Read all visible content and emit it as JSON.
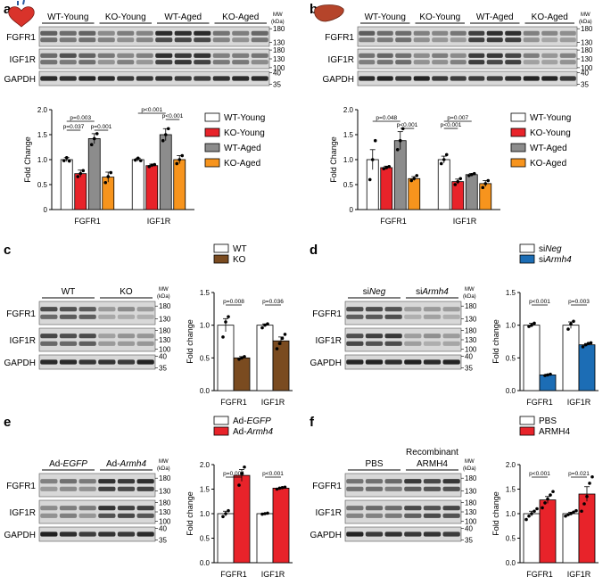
{
  "figure": {
    "panels": [
      {
        "id": "a",
        "organ": "heart",
        "blot": {
          "groups": [
            "WT-Young",
            "KO-Young",
            "WT-Aged",
            "KO-Aged"
          ],
          "rows": [
            "FGFR1",
            "IGF1R",
            "GAPDH"
          ],
          "mw_header": "MW (kDa)",
          "mw_marks": [
            "180",
            "130",
            "180",
            "130",
            "100",
            "40",
            "35"
          ],
          "lane_count": 12
        },
        "chart_data": {
          "type": "bar",
          "ylabel": "Fold Change",
          "ylim": [
            0,
            2.0
          ],
          "yticks": [
            "0",
            "0.5",
            "1.0",
            "1.5",
            "2.0"
          ],
          "categories": [
            "FGFR1",
            "IGF1R"
          ],
          "legend_placement": "right",
          "series": [
            {
              "name": "WT-Young",
              "color": "#ffffff",
              "values": [
                1.0,
                1.0
              ]
            },
            {
              "name": "KO-Young",
              "color": "#e8232a",
              "values": [
                0.72,
                0.88
              ]
            },
            {
              "name": "WT-Aged",
              "color": "#8c8c8c",
              "values": [
                1.42,
                1.5
              ]
            },
            {
              "name": "KO-Aged",
              "color": "#f7941d",
              "values": [
                0.65,
                1.0
              ]
            }
          ],
          "errors": [
            [
              0.04,
              0.03
            ],
            [
              0.07,
              0.03
            ],
            [
              0.1,
              0.12
            ],
            [
              0.1,
              0.08
            ]
          ],
          "points": [
            [
              [
                0.98,
                1.04,
                0.97
              ],
              [
                0.99,
                1.03,
                0.98
              ]
            ],
            [
              [
                0.66,
                0.72,
                0.78
              ],
              [
                0.86,
                0.89,
                0.9
              ]
            ],
            [
              [
                1.3,
                1.42,
                1.52
              ],
              [
                1.38,
                1.5,
                1.62
              ]
            ],
            [
              [
                0.54,
                0.66,
                0.74
              ],
              [
                0.92,
                1.0,
                1.08
              ]
            ]
          ],
          "annotations": [
            {
              "text": "p=0.037",
              "cat": 0,
              "from": 0,
              "to": 1
            },
            {
              "text": "p=0.003",
              "cat": 0,
              "from": 0,
              "to": 2
            },
            {
              "text": "p=0.001",
              "cat": 0,
              "from": 2,
              "to": 3
            },
            {
              "text": "p<0.001",
              "cat": 1,
              "from": 0,
              "to": 2
            },
            {
              "text": "p<0.001",
              "cat": 1,
              "from": 2,
              "to": 3
            }
          ]
        }
      },
      {
        "id": "b",
        "organ": "liver",
        "blot": {
          "groups": [
            "WT-Young",
            "KO-Young",
            "WT-Aged",
            "KO-Aged"
          ],
          "rows": [
            "FGFR1",
            "IGF1R",
            "GAPDH"
          ],
          "mw_header": "MW (kDa)",
          "mw_marks": [
            "180",
            "130",
            "180",
            "130",
            "100",
            "40",
            "35"
          ],
          "lane_count": 12
        },
        "chart_data": {
          "type": "bar",
          "ylabel": "Fold Change",
          "ylim": [
            0,
            2.0
          ],
          "yticks": [
            "0",
            "0.5",
            "1.0",
            "1.5",
            "2.0"
          ],
          "categories": [
            "FGFR1",
            "IGF1R"
          ],
          "legend_placement": "right",
          "series": [
            {
              "name": "WT-Young",
              "color": "#ffffff",
              "values": [
                1.0,
                1.0
              ]
            },
            {
              "name": "KO-Young",
              "color": "#e8232a",
              "values": [
                0.84,
                0.56
              ]
            },
            {
              "name": "WT-Aged",
              "color": "#8c8c8c",
              "values": [
                1.38,
                0.7
              ]
            },
            {
              "name": "KO-Aged",
              "color": "#f7941d",
              "values": [
                0.62,
                0.52
              ]
            }
          ],
          "errors": [
            [
              0.2,
              0.07
            ],
            [
              0.03,
              0.05
            ],
            [
              0.18,
              0.02
            ],
            [
              0.04,
              0.06
            ]
          ],
          "points": [
            [
              [
                0.6,
                1.0,
                1.38
              ],
              [
                0.92,
                1.0,
                1.1
              ]
            ],
            [
              [
                0.82,
                0.84,
                0.86
              ],
              [
                0.5,
                0.56,
                0.62
              ]
            ],
            [
              [
                1.2,
                1.38,
                1.62
              ],
              [
                0.68,
                0.7,
                0.72
              ]
            ],
            [
              [
                0.58,
                0.62,
                0.68
              ],
              [
                0.44,
                0.52,
                0.58
              ]
            ]
          ],
          "annotations": [
            {
              "text": "p=0.048",
              "cat": 0,
              "from": 0,
              "to": 2
            },
            {
              "text": "p<0.001",
              "cat": 0,
              "from": 2,
              "to": 3
            },
            {
              "text": "p=0.007",
              "cat": 1,
              "from": 0,
              "to": 2
            },
            {
              "text": "p<0.001",
              "cat": 1,
              "from": 0,
              "to": 1
            }
          ]
        }
      },
      {
        "id": "c",
        "blot": {
          "groups": [
            "WT",
            "KO"
          ],
          "rows": [
            "FGFR1",
            "IGF1R",
            "GAPDH"
          ],
          "mw_header": "MW (kDa)",
          "mw_marks": [
            "180",
            "130",
            "180",
            "130",
            "100",
            "40",
            "35"
          ],
          "lane_count": 6
        },
        "chart_data": {
          "type": "bar",
          "ylabel": "Fold change",
          "ylim": [
            0,
            1.5
          ],
          "yticks": [
            "0.0",
            "0.5",
            "1.0",
            "1.5"
          ],
          "categories": [
            "FGFR1",
            "IGF1R"
          ],
          "legend_placement": "top",
          "series": [
            {
              "name": "WT",
              "color": "#ffffff",
              "values": [
                1.0,
                1.0
              ]
            },
            {
              "name": "KO",
              "color": "#7a4b20",
              "values": [
                0.5,
                0.76
              ]
            }
          ],
          "errors": [
            [
              0.1,
              0.02
            ],
            [
              0.02,
              0.06
            ]
          ],
          "points": [
            [
              [
                0.82,
                1.05,
                1.13
              ],
              [
                0.96,
                1.0,
                1.02
              ]
            ],
            [
              [
                0.48,
                0.5,
                0.52
              ],
              [
                0.64,
                0.72,
                0.8,
                0.86
              ]
            ]
          ],
          "annotations": [
            {
              "text": "p=0.008",
              "cat": 0,
              "from": 0,
              "to": 1
            },
            {
              "text": "p=0.036",
              "cat": 1,
              "from": 0,
              "to": 1
            }
          ]
        }
      },
      {
        "id": "d",
        "blot": {
          "groups": [
            "siNeg",
            "siArmh4"
          ],
          "group_prefix": "si",
          "group_italic": [
            "Neg",
            "Armh4"
          ],
          "rows": [
            "FGFR1",
            "IGF1R",
            "GAPDH"
          ],
          "mw_header": "MW (kDa)",
          "mw_marks": [
            "180",
            "130",
            "180",
            "130",
            "100",
            "40",
            "35"
          ],
          "lane_count": 6
        },
        "chart_data": {
          "type": "bar",
          "ylabel": "Fold change",
          "ylim": [
            0,
            1.5
          ],
          "yticks": [
            "0.0",
            "0.5",
            "1.0",
            "1.5"
          ],
          "categories": [
            "FGFR1",
            "IGF1R"
          ],
          "legend_placement": "top",
          "series": [
            {
              "name": "siNeg",
              "color": "#ffffff",
              "values": [
                1.0,
                1.0
              ]
            },
            {
              "name": "siArmh4",
              "color": "#1c6db5",
              "values": [
                0.24,
                0.7
              ]
            }
          ],
          "errors": [
            [
              0.03,
              0.05
            ],
            [
              0.01,
              0.02
            ]
          ],
          "points": [
            [
              [
                0.98,
                1.0,
                1.03
              ],
              [
                0.94,
                1.02,
                1.06
              ]
            ],
            [
              [
                0.23,
                0.24,
                0.25
              ],
              [
                0.67,
                0.7,
                0.72,
                0.73
              ]
            ]
          ],
          "annotations": [
            {
              "text": "p<0.001",
              "cat": 0,
              "from": 0,
              "to": 1
            },
            {
              "text": "p=0.003",
              "cat": 1,
              "from": 0,
              "to": 1
            }
          ]
        }
      },
      {
        "id": "e",
        "blot": {
          "groups": [
            "Ad-EGFP",
            "Ad-Armh4"
          ],
          "group_prefix": "Ad-",
          "group_italic": [
            "EGFP",
            "Armh4"
          ],
          "rows": [
            "FGFR1",
            "IGF1R",
            "GAPDH"
          ],
          "mw_header": "MW (kDa)",
          "mw_marks": [
            "180",
            "130",
            "180",
            "130",
            "100",
            "40",
            "35"
          ],
          "lane_count": 6
        },
        "chart_data": {
          "type": "bar",
          "ylabel": "Fold change",
          "ylim": [
            0,
            2.0
          ],
          "yticks": [
            "0.0",
            "0.5",
            "1.0",
            "1.5",
            "2.0"
          ],
          "categories": [
            "FGFR1",
            "IGF1R"
          ],
          "legend_placement": "top",
          "series": [
            {
              "name": "Ad-EGFP",
              "color": "#ffffff",
              "values": [
                1.0,
                1.0
              ]
            },
            {
              "name": "Ad-Armh4",
              "color": "#e8232a",
              "values": [
                1.78,
                1.52
              ]
            }
          ],
          "errors": [
            [
              0.05,
              0.01
            ],
            [
              0.12,
              0.02
            ]
          ],
          "points": [
            [
              [
                0.94,
                1.0,
                1.06
              ],
              [
                0.99,
                1.0,
                1.01
              ]
            ],
            [
              [
                1.58,
                1.82,
                1.95
              ],
              [
                1.5,
                1.52,
                1.53,
                1.54
              ]
            ]
          ],
          "annotations": [
            {
              "text": "p=0.004",
              "cat": 0,
              "from": 0,
              "to": 1
            },
            {
              "text": "p<0.001",
              "cat": 1,
              "from": 0,
              "to": 1
            }
          ]
        }
      },
      {
        "id": "f",
        "blot": {
          "groups": [
            "PBS",
            "Recombinant ARMH4"
          ],
          "group_lines": [
            [
              "PBS"
            ],
            [
              "Recombinant",
              "ARMH4"
            ]
          ],
          "rows": [
            "FGFR1",
            "IGF1R",
            "GAPDH"
          ],
          "mw_header": "MW (kDa)",
          "mw_marks": [
            "180",
            "130",
            "180",
            "130",
            "100",
            "40",
            "35"
          ],
          "lane_count": 6
        },
        "chart_data": {
          "type": "bar",
          "ylabel": "Fold change",
          "ylim": [
            0,
            2.0
          ],
          "yticks": [
            "0.0",
            "0.5",
            "1.0",
            "1.5",
            "2.0"
          ],
          "categories": [
            "FGFR1",
            "IGF1R"
          ],
          "legend_placement": "top",
          "series": [
            {
              "name": "PBS",
              "color": "#ffffff",
              "values": [
                1.0,
                1.0
              ]
            },
            {
              "name": "ARMH4",
              "color": "#e8232a",
              "values": [
                1.28,
                1.4
              ]
            }
          ],
          "errors": [
            [
              0.05,
              0.03
            ],
            [
              0.07,
              0.15
            ]
          ],
          "points": [
            [
              [
                0.88,
                0.95,
                1.0,
                1.05,
                1.1
              ],
              [
                0.95,
                0.98,
                1.0,
                1.03,
                1.06
              ]
            ],
            [
              [
                1.12,
                1.22,
                1.3,
                1.38,
                1.45
              ],
              [
                1.05,
                1.2,
                1.35,
                1.62,
                1.75
              ]
            ]
          ],
          "annotations": [
            {
              "text": "p<0.001",
              "cat": 0,
              "from": 0,
              "to": 1
            },
            {
              "text": "p=0.021",
              "cat": 1,
              "from": 0,
              "to": 1
            }
          ]
        }
      }
    ]
  }
}
